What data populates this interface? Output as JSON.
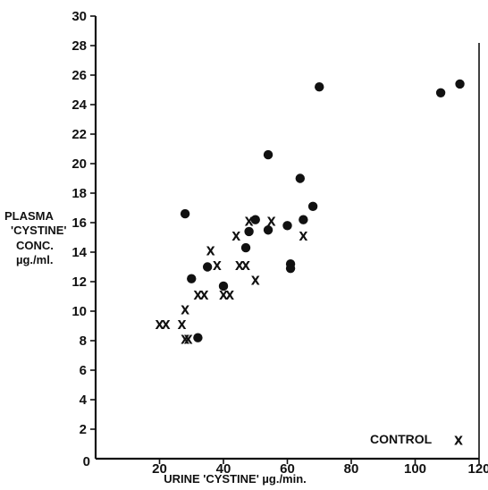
{
  "chart_data": {
    "type": "scatter",
    "title": "",
    "ylabel_lines": [
      "PLASMA",
      "'CYSTINE'",
      "CONC.",
      "µg./ml."
    ],
    "xlabel": "URINE 'CYSTINE' µg./min.",
    "xlim": [
      0,
      120
    ],
    "ylim": [
      0,
      30
    ],
    "x_ticks": [
      20,
      40,
      60,
      80,
      100,
      120
    ],
    "x_origin_label": "0",
    "y_ticks": [
      2,
      4,
      6,
      8,
      10,
      12,
      14,
      16,
      18,
      20,
      22,
      24,
      26,
      28,
      30
    ],
    "grid": false,
    "legend": {
      "label": "CONTROL",
      "marker": "x",
      "placement": "bottom-right"
    },
    "series": [
      {
        "marker": "filled-circle",
        "points": [
          [
            28,
            16.6
          ],
          [
            30,
            12.2
          ],
          [
            32,
            8.2
          ],
          [
            35,
            13
          ],
          [
            40,
            11.7
          ],
          [
            47,
            14.3
          ],
          [
            48,
            15.4
          ],
          [
            50,
            16.2
          ],
          [
            54,
            20.6
          ],
          [
            54,
            15.5
          ],
          [
            60,
            15.8
          ],
          [
            61,
            13.2
          ],
          [
            61,
            12.9
          ],
          [
            64,
            19
          ],
          [
            65,
            16.2
          ],
          [
            68,
            17.1
          ],
          [
            70,
            25.2
          ],
          [
            108,
            24.8
          ],
          [
            114,
            25.4
          ]
        ]
      },
      {
        "name": "CONTROL",
        "marker": "x",
        "points": [
          [
            20,
            9
          ],
          [
            22,
            9
          ],
          [
            27,
            9
          ],
          [
            28,
            8
          ],
          [
            29,
            8
          ],
          [
            28,
            10
          ],
          [
            32,
            11
          ],
          [
            34,
            11
          ],
          [
            36,
            14
          ],
          [
            38,
            13
          ],
          [
            40,
            11
          ],
          [
            42,
            11
          ],
          [
            44,
            15
          ],
          [
            45,
            13
          ],
          [
            47,
            13
          ],
          [
            48,
            16
          ],
          [
            50,
            12
          ],
          [
            55,
            16
          ],
          [
            65,
            15
          ]
        ]
      }
    ]
  }
}
